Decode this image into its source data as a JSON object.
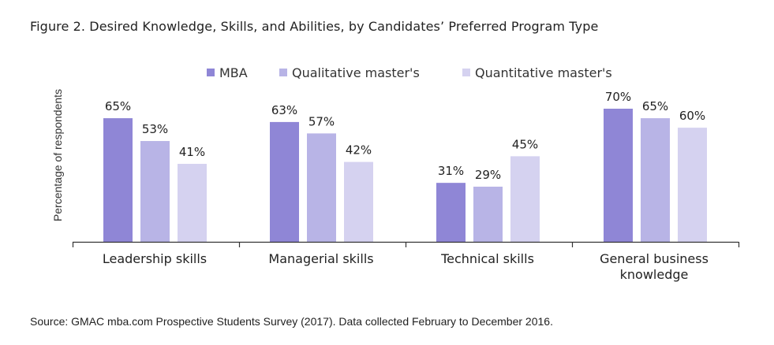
{
  "chart_data": {
    "type": "bar",
    "title": "Figure 2. Desired Knowledge, Skills, and Abilities, by Candidates’ Preferred Program Type",
    "xlabel": "",
    "ylabel": "Percentage of respondents",
    "ylim": [
      0,
      100
    ],
    "grid": false,
    "legend_position": "top",
    "categories": [
      [
        "Leadership skills"
      ],
      [
        "Managerial skills"
      ],
      [
        "Technical skills"
      ],
      [
        "General business",
        "knowledge"
      ]
    ],
    "series": [
      {
        "name": "MBA",
        "color": "#8f86d6",
        "values": [
          65,
          63,
          31,
          70
        ]
      },
      {
        "name": "Qualitative master's",
        "color": "#b8b4e6",
        "values": [
          53,
          57,
          29,
          65
        ]
      },
      {
        "name": "Quantitative master's",
        "color": "#d5d2f0",
        "values": [
          41,
          42,
          45,
          60
        ]
      }
    ],
    "value_suffix": "%",
    "source": "Source: GMAC mba.com Prospective Students Survey (2017). Data collected February to December 2016."
  }
}
